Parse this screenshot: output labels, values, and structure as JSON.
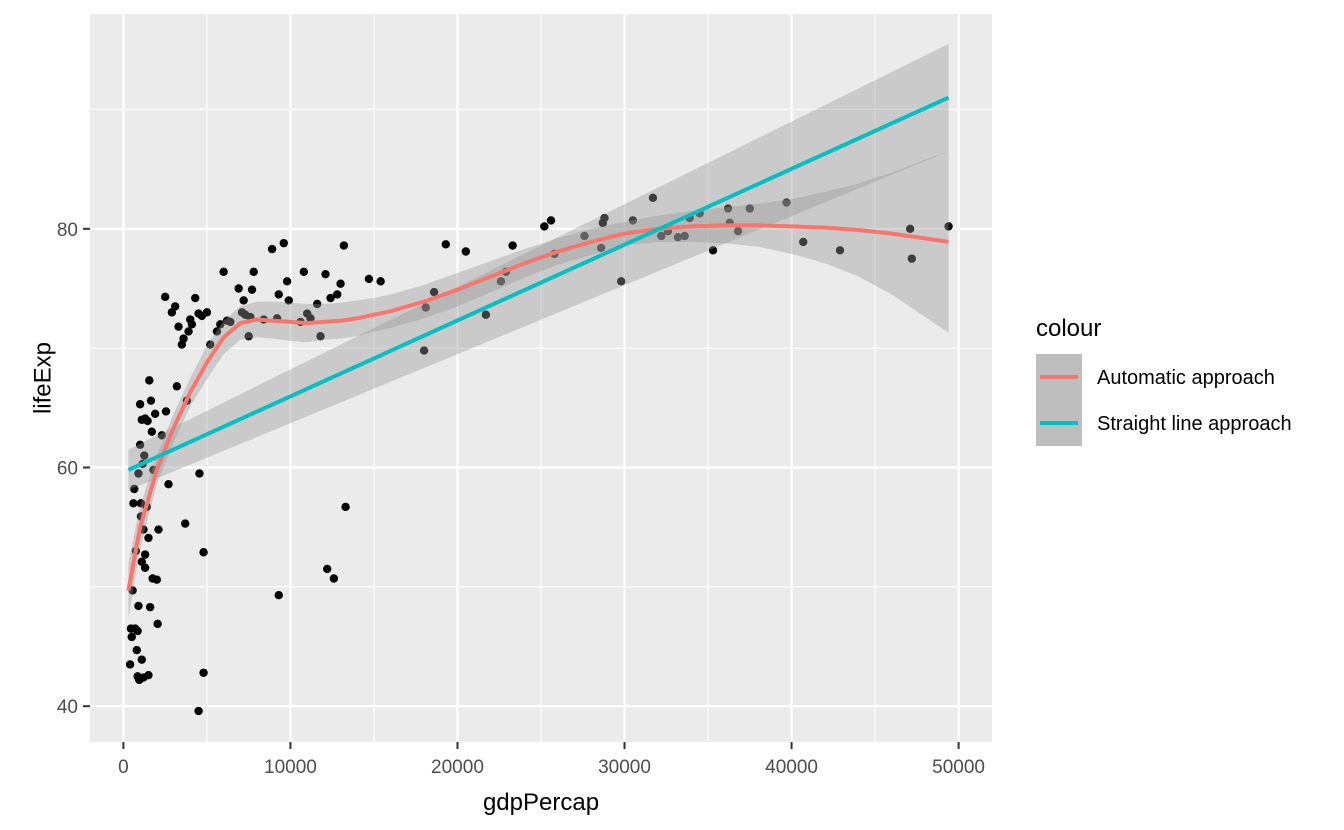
{
  "chart_data": {
    "type": "scatter",
    "xlabel": "gdpPercap",
    "ylabel": "lifeExp",
    "xlim": [
      -2000,
      52000
    ],
    "ylim": [
      37,
      98
    ],
    "x_ticks": [
      0,
      10000,
      20000,
      30000,
      40000,
      50000
    ],
    "y_ticks": [
      40,
      60,
      80
    ],
    "grid": true,
    "legend": {
      "title": "colour",
      "position": "right",
      "entries": [
        {
          "label": "Automatic approach",
          "color": "#F8766D"
        },
        {
          "label": "Straight line approach",
          "color": "#00BFC4"
        }
      ]
    },
    "points": [
      [
        400,
        43.5
      ],
      [
        450,
        46.5
      ],
      [
        500,
        45.8
      ],
      [
        550,
        49.7
      ],
      [
        600,
        57.0
      ],
      [
        650,
        58.2
      ],
      [
        700,
        46.5
      ],
      [
        750,
        53.0
      ],
      [
        800,
        44.7
      ],
      [
        850,
        42.5
      ],
      [
        850,
        46.3
      ],
      [
        900,
        48.4
      ],
      [
        900,
        59.5
      ],
      [
        950,
        42.2
      ],
      [
        1000,
        61.9
      ],
      [
        1000,
        65.3
      ],
      [
        1050,
        57.0
      ],
      [
        1050,
        55.9
      ],
      [
        1100,
        43.9
      ],
      [
        1100,
        52.1
      ],
      [
        1100,
        64.0
      ],
      [
        1150,
        60.3
      ],
      [
        1200,
        54.8
      ],
      [
        1200,
        42.4
      ],
      [
        1250,
        61.0
      ],
      [
        1300,
        52.7
      ],
      [
        1300,
        51.6
      ],
      [
        1300,
        64.1
      ],
      [
        1400,
        56.7
      ],
      [
        1450,
        63.9
      ],
      [
        1500,
        54.1
      ],
      [
        1500,
        42.6
      ],
      [
        1550,
        67.3
      ],
      [
        1600,
        48.3
      ],
      [
        1650,
        65.6
      ],
      [
        1700,
        63.0
      ],
      [
        1750,
        50.7
      ],
      [
        1800,
        59.8
      ],
      [
        1900,
        64.5
      ],
      [
        2000,
        50.6
      ],
      [
        2050,
        46.9
      ],
      [
        2100,
        54.8
      ],
      [
        2300,
        62.7
      ],
      [
        2500,
        74.3
      ],
      [
        2550,
        64.7
      ],
      [
        2700,
        58.6
      ],
      [
        2900,
        73.0
      ],
      [
        3100,
        73.5
      ],
      [
        3200,
        66.8
      ],
      [
        3300,
        71.8
      ],
      [
        3500,
        70.3
      ],
      [
        3600,
        70.8
      ],
      [
        3700,
        55.3
      ],
      [
        3800,
        65.6
      ],
      [
        3900,
        71.4
      ],
      [
        4000,
        72.4
      ],
      [
        4100,
        72.0
      ],
      [
        4300,
        74.2
      ],
      [
        4500,
        72.9
      ],
      [
        4550,
        59.5
      ],
      [
        4500,
        39.6
      ],
      [
        4700,
        72.7
      ],
      [
        4800,
        52.9
      ],
      [
        4800,
        42.8
      ],
      [
        5000,
        73.0
      ],
      [
        5200,
        70.3
      ],
      [
        5600,
        71.4
      ],
      [
        5800,
        72.0
      ],
      [
        6000,
        76.4
      ],
      [
        6200,
        72.3
      ],
      [
        6400,
        72.2
      ],
      [
        6900,
        75.0
      ],
      [
        7100,
        73.0
      ],
      [
        7200,
        74.0
      ],
      [
        7300,
        72.8
      ],
      [
        7500,
        71.0
      ],
      [
        7600,
        72.6
      ],
      [
        7700,
        74.9
      ],
      [
        7800,
        76.4
      ],
      [
        8400,
        72.4
      ],
      [
        8900,
        78.3
      ],
      [
        9200,
        72.5
      ],
      [
        9300,
        49.3
      ],
      [
        9300,
        74.5
      ],
      [
        9600,
        78.8
      ],
      [
        9800,
        75.6
      ],
      [
        9900,
        74.0
      ],
      [
        10600,
        72.2
      ],
      [
        10800,
        76.4
      ],
      [
        11000,
        72.9
      ],
      [
        11200,
        72.5
      ],
      [
        11600,
        73.7
      ],
      [
        11800,
        71.0
      ],
      [
        12100,
        76.2
      ],
      [
        12200,
        51.5
      ],
      [
        12400,
        74.2
      ],
      [
        12600,
        50.7
      ],
      [
        12800,
        74.5
      ],
      [
        13000,
        75.4
      ],
      [
        13200,
        78.6
      ],
      [
        13300,
        56.7
      ],
      [
        14700,
        75.8
      ],
      [
        15400,
        75.6
      ],
      [
        18000,
        69.8
      ],
      [
        18100,
        73.4
      ],
      [
        18600,
        74.7
      ],
      [
        19300,
        78.7
      ],
      [
        20500,
        78.1
      ],
      [
        21700,
        72.8
      ],
      [
        22600,
        75.6
      ],
      [
        22900,
        76.4
      ],
      [
        23300,
        78.6
      ],
      [
        25200,
        80.2
      ],
      [
        25600,
        80.7
      ],
      [
        25800,
        77.9
      ],
      [
        27600,
        79.4
      ],
      [
        28600,
        78.4
      ],
      [
        28700,
        80.5
      ],
      [
        28800,
        80.9
      ],
      [
        29800,
        75.6
      ],
      [
        30500,
        80.7
      ],
      [
        31700,
        82.6
      ],
      [
        32200,
        79.4
      ],
      [
        32600,
        79.8
      ],
      [
        33200,
        79.3
      ],
      [
        33600,
        79.4
      ],
      [
        33900,
        80.9
      ],
      [
        34500,
        81.3
      ],
      [
        35300,
        78.2
      ],
      [
        36200,
        81.7
      ],
      [
        36300,
        80.5
      ],
      [
        36800,
        79.8
      ],
      [
        37500,
        81.7
      ],
      [
        39700,
        82.2
      ],
      [
        40700,
        78.9
      ],
      [
        42900,
        78.2
      ],
      [
        47100,
        80.0
      ],
      [
        47200,
        77.5
      ],
      [
        49400,
        80.2
      ]
    ],
    "series": [
      {
        "name": "Automatic approach",
        "color": "#F8766D",
        "x": [
          300,
          1000,
          2000,
          3000,
          4000,
          5000,
          6000,
          7000,
          8000,
          9000,
          10000,
          11000,
          12000,
          13000,
          14000,
          15000,
          16000,
          18000,
          20000,
          22000,
          24000,
          26000,
          28000,
          30000,
          32000,
          34000,
          36000,
          38000,
          40000,
          42000,
          44000,
          46000,
          48000,
          49400
        ],
        "y": [
          49.7,
          55.0,
          59.8,
          63.3,
          66.3,
          68.8,
          70.9,
          72.1,
          72.4,
          72.3,
          72.2,
          72.1,
          72.2,
          72.3,
          72.5,
          72.8,
          73.1,
          73.9,
          74.9,
          76.0,
          77.1,
          78.1,
          78.9,
          79.6,
          80.0,
          80.2,
          80.3,
          80.3,
          80.2,
          80.1,
          79.9,
          79.6,
          79.2,
          78.9
        ],
        "ci_upper": [
          52.0,
          56.8,
          61.0,
          64.5,
          67.5,
          70.2,
          72.3,
          73.5,
          73.9,
          73.9,
          73.8,
          73.7,
          73.7,
          73.8,
          74.0,
          74.2,
          74.5,
          75.3,
          76.3,
          77.3,
          78.3,
          79.2,
          80.0,
          80.6,
          81.1,
          81.5,
          81.8,
          82.1,
          82.5,
          83.1,
          83.8,
          84.7,
          85.8,
          86.5
        ],
        "ci_lower": [
          47.4,
          53.2,
          58.6,
          62.1,
          65.1,
          67.4,
          69.5,
          70.7,
          70.9,
          70.8,
          70.6,
          70.5,
          70.7,
          70.8,
          71.0,
          71.4,
          71.7,
          72.5,
          73.5,
          74.7,
          75.9,
          77.0,
          77.8,
          78.6,
          78.9,
          78.9,
          78.8,
          78.5,
          77.9,
          77.1,
          76.0,
          74.5,
          72.6,
          71.3
        ]
      },
      {
        "name": "Straight line approach",
        "color": "#00BFC4",
        "x": [
          300,
          49400
        ],
        "y": [
          59.8,
          91.0
        ],
        "ci_upper": [
          61.5,
          95.5
        ],
        "ci_lower": [
          58.1,
          86.5
        ]
      }
    ]
  }
}
